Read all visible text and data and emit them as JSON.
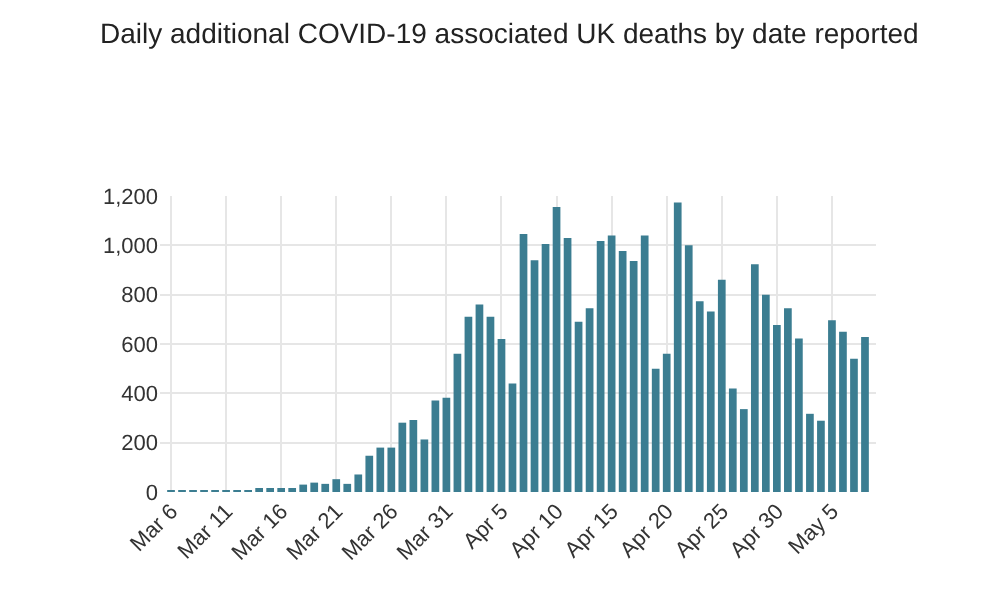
{
  "chart_data": {
    "type": "bar",
    "title": "Daily additional COVID-19 associated UK deaths by date reported",
    "x": [
      "--03-06",
      "--03-07",
      "--03-08",
      "--03-09",
      "--03-10",
      "--03-11",
      "--03-12",
      "--03-13",
      "--03-14",
      "--03-15",
      "--03-16",
      "--03-17",
      "--03-18",
      "--03-19",
      "--03-20",
      "--03-21",
      "--03-22",
      "--03-23",
      "--03-24",
      "--03-25",
      "--03-26",
      "--03-27",
      "--03-28",
      "--03-29",
      "--03-30",
      "--03-31",
      "--04-01",
      "--04-02",
      "--04-03",
      "--04-04",
      "--04-05",
      "--04-06",
      "--04-07",
      "--04-08",
      "--04-09",
      "--04-10",
      "--04-11",
      "--04-12",
      "--04-13",
      "--04-14",
      "--04-15",
      "--04-16",
      "--04-17",
      "--04-18",
      "--04-19",
      "--04-20",
      "--04-21",
      "--04-22",
      "--04-23",
      "--04-24",
      "--04-25",
      "--04-26",
      "--04-27",
      "--04-28",
      "--04-29",
      "--04-30",
      "--05-01",
      "--05-02",
      "--05-03",
      "--05-04",
      "--05-05",
      "--05-06",
      "--05-07",
      "--05-08"
    ],
    "values": [
      1,
      1,
      2,
      1,
      3,
      2,
      5,
      7,
      14,
      10,
      16,
      14,
      30,
      38,
      33,
      52,
      33,
      71,
      147,
      180,
      180,
      281,
      292,
      213,
      371,
      382,
      560,
      710,
      760,
      710,
      620,
      440,
      1046,
      940,
      1005,
      1155,
      1030,
      690,
      745,
      1018,
      1040,
      977,
      936,
      1040,
      500,
      560,
      1174,
      1000,
      773,
      732,
      860,
      420,
      336,
      923,
      800,
      677,
      745,
      622,
      317,
      289,
      696,
      650,
      540,
      628
    ],
    "color": "#3b7d91",
    "xlim": [
      "--03-05",
      "--05-09"
    ],
    "xticks": [
      {
        "value": "--03-06",
        "label": "Mar 6"
      },
      {
        "value": "--03-11",
        "label": "Mar 11"
      },
      {
        "value": "--03-16",
        "label": "Mar 16"
      },
      {
        "value": "--03-21",
        "label": "Mar 21"
      },
      {
        "value": "--03-26",
        "label": "Mar 26"
      },
      {
        "value": "--03-31",
        "label": "Mar 31"
      },
      {
        "value": "--04-05",
        "label": "Apr 5"
      },
      {
        "value": "--04-10",
        "label": "Apr 10"
      },
      {
        "value": "--04-15",
        "label": "Apr 15"
      },
      {
        "value": "--04-20",
        "label": "Apr 20"
      },
      {
        "value": "--04-25",
        "label": "Apr 25"
      },
      {
        "value": "--04-30",
        "label": "Apr 30"
      },
      {
        "value": "--05-05",
        "label": "May 5"
      }
    ],
    "ylim": [
      0,
      1200
    ],
    "yticks": [
      0,
      {
        "value": 200,
        "label": "200"
      },
      {
        "value": 400,
        "label": "400"
      },
      {
        "value": 600,
        "label": "600"
      },
      {
        "value": 800,
        "label": "800"
      },
      {
        "value": 1000,
        "label": "1,000"
      },
      {
        "value": 1200,
        "label": "1,200"
      }
    ],
    "grid": true
  }
}
